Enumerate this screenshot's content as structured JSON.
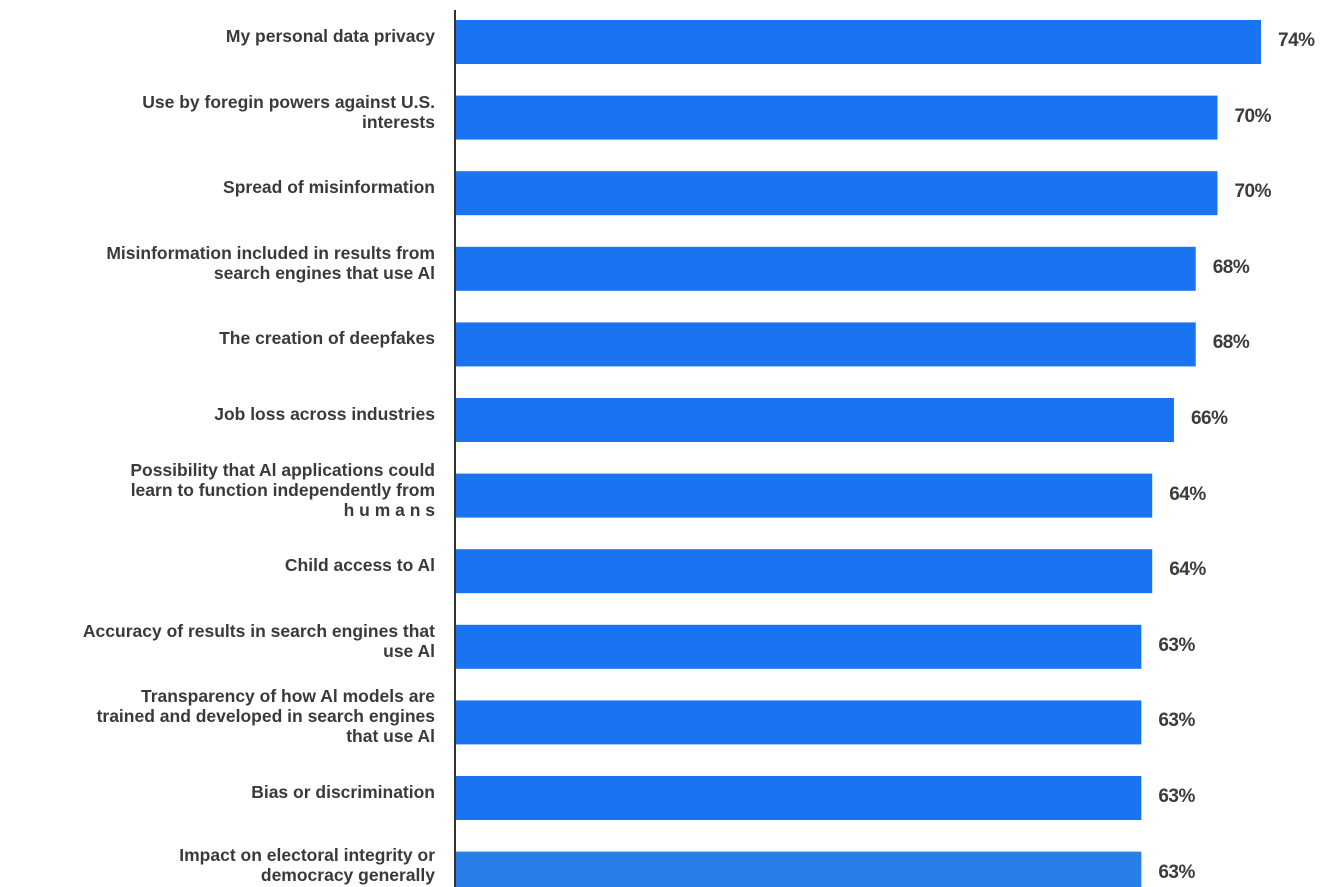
{
  "chart_data": {
    "type": "bar",
    "orientation": "horizontal",
    "categories": [
      "My personal data privacy",
      "Use by foregin powers against U.S.\ninterests",
      "Spread of misinformation",
      "Misinformation included in results from\nsearch engines that use Al",
      "The creation of deepfakes",
      "Job loss across industries",
      "Possibility that Al applications could\nlearn to function independently from\nh u m a n s",
      "Child access to Al",
      "Accuracy of results in search engines that\nuse Al",
      "Transparency of how Al models are\ntrained and developed in search engines\nthat use Al",
      "Bias or discrimination",
      "Impact on electoral integrity or\ndemocracy generally"
    ],
    "values": [
      74,
      70,
      70,
      68,
      68,
      66,
      64,
      64,
      63,
      63,
      63,
      63
    ],
    "value_labels": [
      "74%",
      "70%",
      "70%",
      "68%",
      "68%",
      "66%",
      "64%",
      "64%",
      "63%",
      "63%",
      "63%",
      "63%"
    ],
    "value_unit": "%",
    "xlim": [
      0,
      74
    ],
    "grid": false,
    "colors": {
      "bar": "#1a73f0",
      "last_bar": "#2a7ee8",
      "axis": "#333333",
      "label_text": "#3a3a3a",
      "value_text": "#3c3c3c"
    }
  }
}
